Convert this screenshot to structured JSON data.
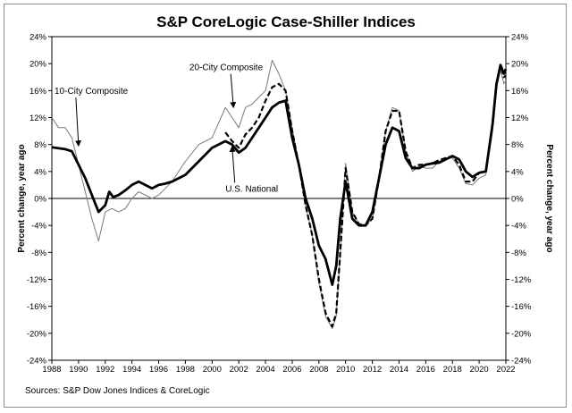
{
  "chart_data": {
    "type": "line",
    "title": "S&P CoreLogic Case-Shiller Indices",
    "ylabel_left": "Percent change, year ago",
    "ylabel_right": "Percent change, year ago",
    "source": "Sources: S&P Dow Jones Indices & CoreLogic",
    "xlim": [
      1988,
      2022
    ],
    "ylim": [
      -24,
      24
    ],
    "x_ticks": [
      "1988",
      "1990",
      "1992",
      "1994",
      "1996",
      "1998",
      "2000",
      "2002",
      "2004",
      "2006",
      "2008",
      "2010",
      "2012",
      "2014",
      "2016",
      "2018",
      "2020",
      "2022"
    ],
    "y_ticks": [
      "24%",
      "20%",
      "16%",
      "12%",
      "8%",
      "4%",
      "0%",
      "-4%",
      "-8%",
      "-12%",
      "-16%",
      "-20%",
      "-24%"
    ],
    "grid": false,
    "series": [
      {
        "name": "U.S. National",
        "style": "thick-solid",
        "points": [
          [
            1988,
            7.6
          ],
          [
            1989,
            7.3
          ],
          [
            1989.5,
            7.0
          ],
          [
            1990,
            5.0
          ],
          [
            1990.5,
            3.0
          ],
          [
            1991,
            0.5
          ],
          [
            1991.5,
            -2.0
          ],
          [
            1992,
            -1.0
          ],
          [
            1992.3,
            1.0
          ],
          [
            1992.6,
            0.2
          ],
          [
            1993,
            0.5
          ],
          [
            1993.5,
            1.2
          ],
          [
            1994,
            2.0
          ],
          [
            1994.5,
            2.5
          ],
          [
            1995,
            2.0
          ],
          [
            1995.5,
            1.5
          ],
          [
            1996,
            2.0
          ],
          [
            1996.5,
            2.2
          ],
          [
            1997,
            2.5
          ],
          [
            1998,
            3.5
          ],
          [
            1999,
            5.5
          ],
          [
            2000,
            7.5
          ],
          [
            2001,
            8.5
          ],
          [
            2001.5,
            8.0
          ],
          [
            2002,
            6.8
          ],
          [
            2002.5,
            7.5
          ],
          [
            2003,
            9.0
          ],
          [
            2003.5,
            10.5
          ],
          [
            2004,
            12.0
          ],
          [
            2004.5,
            13.5
          ],
          [
            2005,
            14.2
          ],
          [
            2005.5,
            14.5
          ],
          [
            2006,
            9.0
          ],
          [
            2006.5,
            5.0
          ],
          [
            2007,
            0.0
          ],
          [
            2007.5,
            -3.0
          ],
          [
            2008,
            -7.0
          ],
          [
            2008.5,
            -9.0
          ],
          [
            2009,
            -12.8
          ],
          [
            2009.3,
            -10.0
          ],
          [
            2009.6,
            -3.0
          ],
          [
            2010,
            2.5
          ],
          [
            2010.5,
            -3.0
          ],
          [
            2011,
            -4.0
          ],
          [
            2011.5,
            -4.0
          ],
          [
            2012,
            -2.0
          ],
          [
            2012.5,
            3.0
          ],
          [
            2013,
            8.0
          ],
          [
            2013.5,
            10.5
          ],
          [
            2014,
            10.0
          ],
          [
            2014.5,
            6.0
          ],
          [
            2015,
            4.5
          ],
          [
            2015.5,
            4.5
          ],
          [
            2016,
            5.0
          ],
          [
            2016.5,
            5.2
          ],
          [
            2017,
            5.3
          ],
          [
            2017.5,
            5.8
          ],
          [
            2018,
            6.3
          ],
          [
            2018.5,
            5.8
          ],
          [
            2019,
            4.0
          ],
          [
            2019.5,
            3.2
          ],
          [
            2020,
            3.8
          ],
          [
            2020.5,
            4.0
          ],
          [
            2021,
            11.0
          ],
          [
            2021.3,
            17.0
          ],
          [
            2021.6,
            19.8
          ],
          [
            2021.85,
            18.5
          ],
          [
            2022,
            19.2
          ]
        ]
      },
      {
        "name": "20-City Composite",
        "style": "dashed",
        "points": [
          [
            2001,
            9.8
          ],
          [
            2001.5,
            8.5
          ],
          [
            2002,
            7.5
          ],
          [
            2002.5,
            9.5
          ],
          [
            2003,
            10.5
          ],
          [
            2003.5,
            12.0
          ],
          [
            2004,
            14.5
          ],
          [
            2004.5,
            16.5
          ],
          [
            2005,
            17.0
          ],
          [
            2005.5,
            16.0
          ],
          [
            2006,
            10.0
          ],
          [
            2006.5,
            5.0
          ],
          [
            2007,
            -1.0
          ],
          [
            2007.5,
            -5.5
          ],
          [
            2008,
            -12.0
          ],
          [
            2008.5,
            -17.0
          ],
          [
            2009,
            -19.0
          ],
          [
            2009.3,
            -17.0
          ],
          [
            2009.6,
            -8.0
          ],
          [
            2010,
            4.5
          ],
          [
            2010.5,
            -2.0
          ],
          [
            2011,
            -3.8
          ],
          [
            2011.5,
            -4.0
          ],
          [
            2012,
            -3.0
          ],
          [
            2012.5,
            3.0
          ],
          [
            2013,
            10.0
          ],
          [
            2013.5,
            13.0
          ],
          [
            2014,
            13.0
          ],
          [
            2014.5,
            7.0
          ],
          [
            2015,
            4.5
          ],
          [
            2015.5,
            5.0
          ],
          [
            2016,
            5.0
          ],
          [
            2016.5,
            5.2
          ],
          [
            2017,
            5.7
          ],
          [
            2017.5,
            6.0
          ],
          [
            2018,
            6.3
          ],
          [
            2018.5,
            5.0
          ],
          [
            2019,
            2.5
          ],
          [
            2019.5,
            2.5
          ],
          [
            2020,
            3.8
          ],
          [
            2020.5,
            4.0
          ],
          [
            2021,
            11.0
          ],
          [
            2021.3,
            17.0
          ],
          [
            2021.6,
            19.8
          ],
          [
            2021.85,
            18.0
          ],
          [
            2022,
            18.2
          ]
        ]
      },
      {
        "name": "10-City Composite",
        "style": "thin-solid",
        "points": [
          [
            1988,
            12.0
          ],
          [
            1988.5,
            10.5
          ],
          [
            1989,
            10.5
          ],
          [
            1989.5,
            9.0
          ],
          [
            1990,
            5.0
          ],
          [
            1990.5,
            1.0
          ],
          [
            1991,
            -3.0
          ],
          [
            1991.5,
            -6.3
          ],
          [
            1992,
            -2.0
          ],
          [
            1992.5,
            -1.5
          ],
          [
            1993,
            -2.0
          ],
          [
            1993.5,
            -1.5
          ],
          [
            1994,
            0.0
          ],
          [
            1994.5,
            1.0
          ],
          [
            1995,
            0.5
          ],
          [
            1995.5,
            0.0
          ],
          [
            1996,
            0.5
          ],
          [
            1996.5,
            1.5
          ],
          [
            1997,
            2.5
          ],
          [
            1998,
            5.5
          ],
          [
            1999,
            8.0
          ],
          [
            2000,
            9.0
          ],
          [
            2001,
            13.5
          ],
          [
            2001.5,
            12.0
          ],
          [
            2002,
            10.5
          ],
          [
            2002.5,
            13.5
          ],
          [
            2003,
            14.0
          ],
          [
            2003.5,
            15.0
          ],
          [
            2004,
            16.0
          ],
          [
            2004.5,
            20.5
          ],
          [
            2005,
            18.5
          ],
          [
            2005.5,
            16.0
          ],
          [
            2006,
            10.5
          ],
          [
            2006.5,
            5.0
          ],
          [
            2007,
            -1.0
          ],
          [
            2007.5,
            -5.5
          ],
          [
            2008,
            -12.5
          ],
          [
            2008.5,
            -17.5
          ],
          [
            2009,
            -19.3
          ],
          [
            2009.3,
            -17.5
          ],
          [
            2009.6,
            -8.0
          ],
          [
            2010,
            5.2
          ],
          [
            2010.5,
            -2.0
          ],
          [
            2011,
            -3.8
          ],
          [
            2011.5,
            -4.0
          ],
          [
            2012,
            -3.0
          ],
          [
            2012.5,
            3.0
          ],
          [
            2013,
            10.0
          ],
          [
            2013.5,
            13.5
          ],
          [
            2014,
            13.0
          ],
          [
            2014.5,
            7.0
          ],
          [
            2015,
            4.0
          ],
          [
            2015.5,
            4.8
          ],
          [
            2016,
            4.5
          ],
          [
            2016.5,
            4.5
          ],
          [
            2017,
            5.5
          ],
          [
            2017.5,
            6.0
          ],
          [
            2018,
            6.0
          ],
          [
            2018.5,
            4.5
          ],
          [
            2019,
            2.2
          ],
          [
            2019.5,
            2.0
          ],
          [
            2020,
            3.0
          ],
          [
            2020.5,
            3.5
          ],
          [
            2021,
            10.0
          ],
          [
            2021.3,
            16.5
          ],
          [
            2021.6,
            19.0
          ],
          [
            2021.85,
            17.0
          ],
          [
            2022,
            17.5
          ]
        ]
      }
    ],
    "annotations": [
      {
        "text": "10-City Composite",
        "label_x": 1988.2,
        "label_y": 15.5,
        "arrow_x": 1990.0,
        "arrow_y": 7.8
      },
      {
        "text": "20-City Composite",
        "label_x": 1998.3,
        "label_y": 19.0,
        "arrow_x": 2001.6,
        "arrow_y": 13.5
      },
      {
        "text": "U.S. National",
        "label_x": 2001.0,
        "label_y": 1.0,
        "arrow_x": 2001.5,
        "arrow_y": 7.7
      }
    ]
  }
}
